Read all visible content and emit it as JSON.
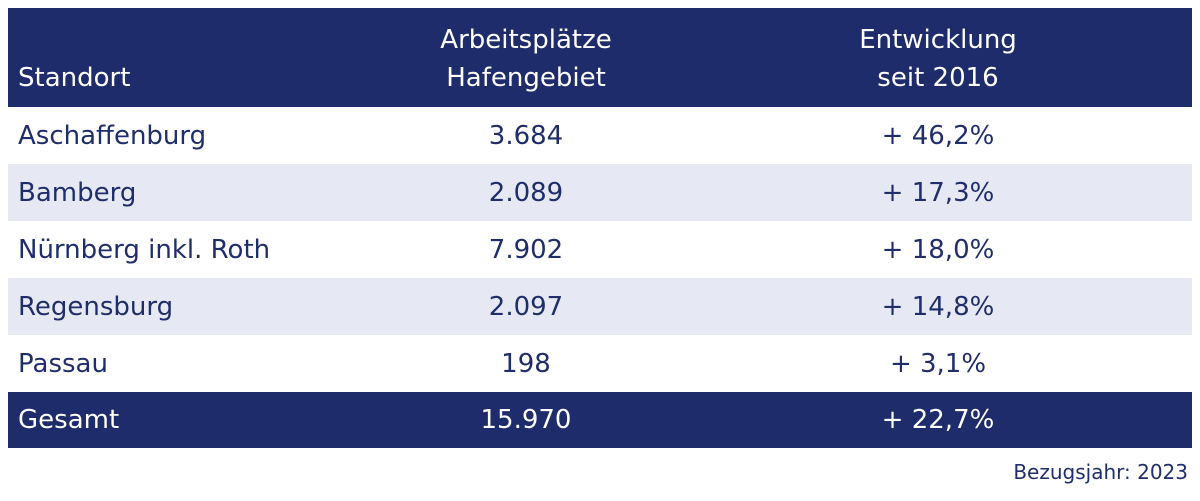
{
  "table": {
    "header": [
      "Standort",
      "Arbeitsplätze Hafengebiet",
      "Entwicklung seit 2016"
    ],
    "rows": [
      [
        "Aschaffenburg",
        "3.684",
        "+ 46,2%"
      ],
      [
        "Bamberg",
        "2.089",
        "+ 17,3%"
      ],
      [
        "Nürnberg inkl. Roth",
        "7.902",
        "+ 18,0%"
      ],
      [
        "Regensburg",
        "2.097",
        "+ 14,8%"
      ],
      [
        "Passau",
        "198",
        "+ 3,1%"
      ]
    ],
    "total": [
      "Gesamt",
      "15.970",
      "+ 22,7%"
    ]
  },
  "footnote": "Bezugsjahr: 2023"
}
